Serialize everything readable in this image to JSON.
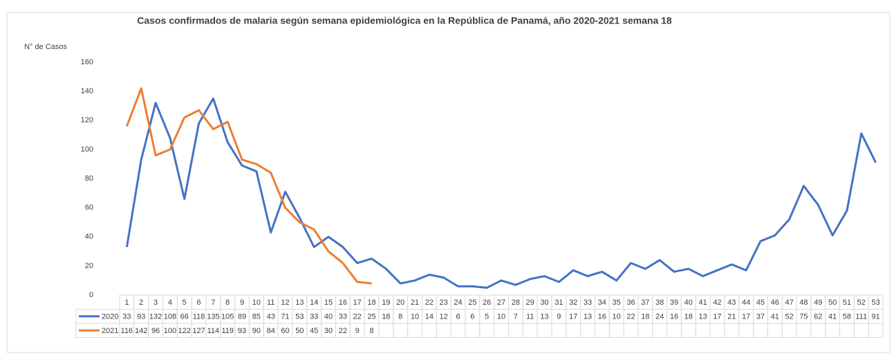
{
  "chart_data": {
    "type": "line",
    "title": "Casos confirmados de malaria según semana epidemiológica en la República de Panamá, año 2020-2021 semana 18",
    "ylabel": "N° de Casos",
    "categories": [
      1,
      2,
      3,
      4,
      5,
      6,
      7,
      8,
      9,
      10,
      11,
      12,
      13,
      14,
      15,
      16,
      17,
      18,
      19,
      20,
      21,
      22,
      23,
      24,
      25,
      26,
      27,
      28,
      29,
      30,
      31,
      32,
      33,
      34,
      35,
      36,
      37,
      38,
      39,
      40,
      41,
      42,
      43,
      44,
      45,
      46,
      47,
      48,
      49,
      50,
      51,
      52,
      53
    ],
    "series": [
      {
        "name": "2020",
        "color": "#4472c4",
        "values": [
          33,
          93,
          132,
          108,
          66,
          118,
          135,
          105,
          89,
          85,
          43,
          71,
          53,
          33,
          40,
          33,
          22,
          25,
          18,
          8,
          10,
          14,
          12,
          6,
          6,
          5,
          10,
          7,
          11,
          13,
          9,
          17,
          13,
          16,
          10,
          22,
          18,
          24,
          16,
          18,
          13,
          17,
          21,
          17,
          37,
          41,
          52,
          75,
          62,
          41,
          58,
          111,
          91
        ]
      },
      {
        "name": "2021",
        "color": "#ed7d31",
        "values": [
          116,
          142,
          96,
          100,
          122,
          127,
          114,
          119,
          93,
          90,
          84,
          60,
          50,
          45,
          30,
          22,
          9,
          8,
          null,
          null,
          null,
          null,
          null,
          null,
          null,
          null,
          null,
          null,
          null,
          null,
          null,
          null,
          null,
          null,
          null,
          null,
          null,
          null,
          null,
          null,
          null,
          null,
          null,
          null,
          null,
          null,
          null,
          null,
          null,
          null,
          null,
          null,
          null
        ]
      }
    ],
    "ylim": [
      0,
      160
    ],
    "yticks": [
      0,
      20,
      40,
      60,
      80,
      100,
      120,
      140,
      160
    ],
    "grid": false,
    "data_table": true
  }
}
